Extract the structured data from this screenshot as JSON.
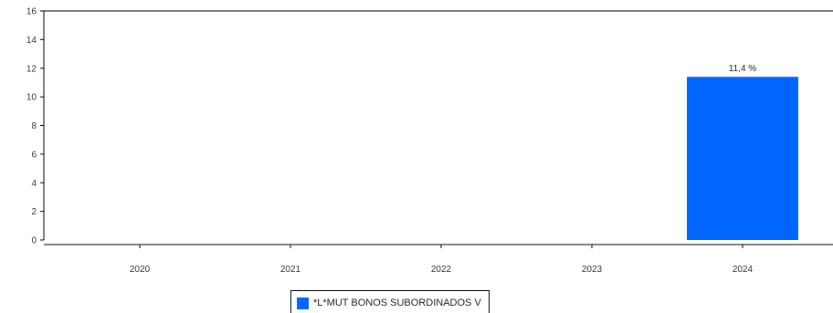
{
  "chart_data": {
    "type": "bar",
    "categories": [
      "2020",
      "2021",
      "2022",
      "2023",
      "2024"
    ],
    "series": [
      {
        "name": "*L*MUT BONOS SUBORDINADOS V",
        "color": "#0066ff",
        "values": [
          null,
          null,
          null,
          null,
          11.4
        ],
        "data_labels": [
          "",
          "",
          "",
          "",
          "11,4 %"
        ]
      }
    ],
    "yticks": [
      "0",
      "2",
      "4",
      "6",
      "8",
      "10",
      "12",
      "14",
      "16"
    ],
    "ylim": [
      0,
      16
    ],
    "grid": false,
    "legend_position": "bottom-center"
  }
}
